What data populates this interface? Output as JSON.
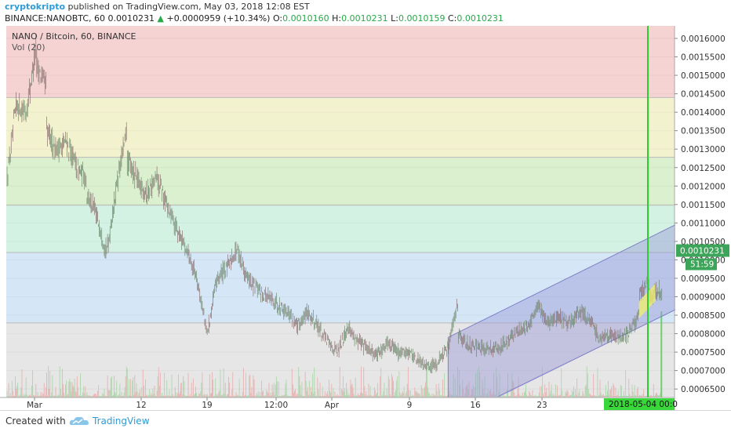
{
  "header": {
    "author": "cryptokripto",
    "published": " published on TradingView.com, May 03, 2018 12:08 EST",
    "symbol": "BINANCE:NANOBTC, 60",
    "last": "0.0010231",
    "change": "+0.0000959 (+10.34%)",
    "open_label": "O:",
    "open": "0.0010160",
    "high_label": "H:",
    "high": "0.0010231",
    "low_label": "L:",
    "low": "0.0010159",
    "close_label": "C:",
    "close": "0.0010231",
    "up_color": "#2aa84a",
    "author_color": "#2f9bd6"
  },
  "footer": {
    "created_with": "Created with",
    "brand": "TradingView",
    "icon": "tradingview-cloud-icon"
  },
  "chart_data": {
    "type": "candlestick",
    "title": "NANO / Bitcoin, 60, BINANCE",
    "indicator": "Vol (20)",
    "x_ticks": [
      "Mar",
      "12",
      "19",
      "12:00",
      "Apr",
      "9",
      "16",
      "23"
    ],
    "y_ticks": [
      "0.0016000",
      "0.0015500",
      "0.0015000",
      "0.0014500",
      "0.0014000",
      "0.0013500",
      "0.0013000",
      "0.0012500",
      "0.0012000",
      "0.0011500",
      "0.0011000",
      "0.0010500",
      "0.0010000",
      "0.0009500",
      "0.0009000",
      "0.0008500",
      "0.0008000",
      "0.0007500",
      "0.0007000",
      "0.0006500"
    ],
    "ylim": [
      0.000627,
      0.001634
    ],
    "price_label": "0.0010231",
    "countdown_label": "51:59",
    "date_label": "2018-05-04 00:0",
    "bands": [
      {
        "from": 0.00144,
        "to": 0.001634,
        "color": "#f6d3d3"
      },
      {
        "from": 0.001278,
        "to": 0.00144,
        "color": "#f3f2cf"
      },
      {
        "from": 0.001148,
        "to": 0.001278,
        "color": "#dbf0cf"
      },
      {
        "from": 0.00102,
        "to": 0.001148,
        "color": "#d3f2e4"
      },
      {
        "from": 0.000829,
        "to": 0.00102,
        "color": "#d5e7f6"
      },
      {
        "from": 0.000627,
        "to": 0.000829,
        "color": "#e6e6e6"
      }
    ],
    "price_path": [
      [
        "2018-02-27",
        0.0012
      ],
      [
        "2018-02-28",
        0.00142
      ],
      [
        "2018-03-01",
        0.0014
      ],
      [
        "2018-03-02",
        0.00158
      ],
      [
        "2018-03-02",
        0.00153
      ],
      [
        "2018-03-03",
        0.00147
      ],
      [
        "2018-03-03",
        0.00135
      ],
      [
        "2018-03-04",
        0.0013
      ],
      [
        "2018-03-05",
        0.00132
      ],
      [
        "2018-03-06",
        0.00125
      ],
      [
        "2018-03-07",
        0.00122
      ],
      [
        "2018-03-07",
        0.00118
      ],
      [
        "2018-03-08",
        0.00112
      ],
      [
        "2018-03-09",
        0.00102
      ],
      [
        "2018-03-10",
        0.0012
      ],
      [
        "2018-03-11",
        0.00135
      ],
      [
        "2018-03-11",
        0.00127
      ],
      [
        "2018-03-12",
        0.00122
      ],
      [
        "2018-03-13",
        0.00118
      ],
      [
        "2018-03-14",
        0.00122
      ],
      [
        "2018-03-15",
        0.00115
      ],
      [
        "2018-03-16",
        0.00108
      ],
      [
        "2018-03-17",
        0.00103
      ],
      [
        "2018-03-18",
        0.00095
      ],
      [
        "2018-03-19",
        0.0008
      ],
      [
        "2018-03-20",
        0.00095
      ],
      [
        "2018-03-21",
        0.00098
      ],
      [
        "2018-03-22",
        0.00103
      ],
      [
        "2018-03-23",
        0.00095
      ],
      [
        "2018-03-24",
        0.00092
      ],
      [
        "2018-03-25",
        0.0009
      ],
      [
        "2018-03-26",
        0.00088
      ],
      [
        "2018-03-27",
        0.00086
      ],
      [
        "2018-03-28",
        0.00082
      ],
      [
        "2018-03-29",
        0.00086
      ],
      [
        "2018-03-30",
        0.00082
      ],
      [
        "2018-03-31",
        0.00078
      ],
      [
        "2018-04-01",
        0.00075
      ],
      [
        "2018-04-02",
        0.00082
      ],
      [
        "2018-04-03",
        0.00078
      ],
      [
        "2018-04-04",
        0.00076
      ],
      [
        "2018-04-05",
        0.00074
      ],
      [
        "2018-04-06",
        0.00078
      ],
      [
        "2018-04-07",
        0.00075
      ],
      [
        "2018-04-08",
        0.00075
      ],
      [
        "2018-04-09",
        0.00073
      ],
      [
        "2018-04-10",
        0.00071
      ],
      [
        "2018-04-11",
        0.00072
      ],
      [
        "2018-04-11",
        0.00073
      ],
      [
        "2018-04-12",
        0.00076
      ],
      [
        "2018-04-13",
        0.00089
      ],
      [
        "2018-04-13",
        0.0008
      ],
      [
        "2018-04-14",
        0.00077
      ],
      [
        "2018-04-15",
        0.00076
      ],
      [
        "2018-04-16",
        0.00076
      ],
      [
        "2018-04-17",
        0.00076
      ],
      [
        "2018-04-18",
        0.00078
      ],
      [
        "2018-04-19",
        0.00081
      ],
      [
        "2018-04-20",
        0.00082
      ],
      [
        "2018-04-21",
        0.00087
      ],
      [
        "2018-04-22",
        0.00083
      ],
      [
        "2018-04-23",
        0.00085
      ],
      [
        "2018-04-24",
        0.00082
      ],
      [
        "2018-04-25",
        0.00086
      ],
      [
        "2018-04-26",
        0.00084
      ],
      [
        "2018-04-27",
        0.00079
      ],
      [
        "2018-04-28",
        0.0008
      ],
      [
        "2018-04-29",
        0.00079
      ],
      [
        "2018-04-30",
        0.0008
      ],
      [
        "2018-05-01",
        0.00085
      ],
      [
        "2018-05-01",
        0.0009
      ],
      [
        "2018-05-02",
        0.00094
      ],
      [
        "2018-05-02",
        0.0009
      ],
      [
        "2018-05-03",
        0.00092
      ],
      [
        "2018-05-03",
        0.00102
      ]
    ],
    "channel": {
      "upper": [
        [
          "2018-04-12",
          0.00079
        ],
        [
          "2018-05-05",
          0.0011
        ]
      ],
      "lower": [
        [
          "2018-04-17",
          0.00063
        ],
        [
          "2018-05-05",
          0.00087
        ]
      ],
      "color": "#9a9ad6"
    },
    "highlight_box": {
      "from": [
        "2018-05-01",
        0.000858
      ],
      "to": [
        "2018-05-02",
        0.000935
      ],
      "color": "#f0f06a"
    },
    "vertical_line": {
      "x": "2018-05-04",
      "color": "#2bcf2b"
    }
  }
}
